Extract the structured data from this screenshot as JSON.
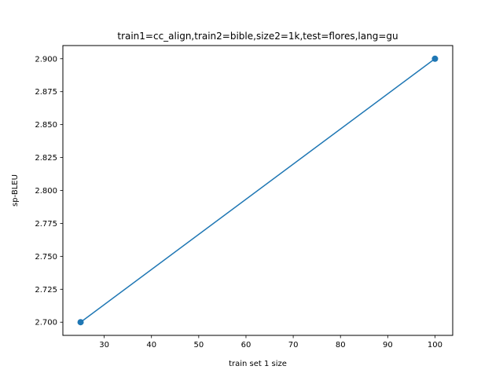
{
  "chart_data": {
    "type": "line",
    "title": "train1=cc_align,train2=bible,size2=1k,test=flores,lang=gu",
    "xlabel": "train set 1 size",
    "ylabel": "sp-BLEU",
    "x": [
      25,
      100
    ],
    "series": [
      {
        "values": [
          2.7,
          2.9
        ],
        "color": "#1f77b4",
        "marker": "circle"
      }
    ],
    "xlim": [
      21.25,
      103.75
    ],
    "ylim": [
      2.69,
      2.91
    ],
    "xticks": [
      30,
      40,
      50,
      60,
      70,
      80,
      90,
      100
    ],
    "xtick_labels": [
      "30",
      "40",
      "50",
      "60",
      "70",
      "80",
      "90",
      "100"
    ],
    "yticks": [
      2.7,
      2.725,
      2.75,
      2.775,
      2.8,
      2.825,
      2.85,
      2.875,
      2.9
    ],
    "ytick_labels": [
      "2.700",
      "2.725",
      "2.750",
      "2.775",
      "2.800",
      "2.825",
      "2.850",
      "2.875",
      "2.900"
    ],
    "grid": false,
    "legend": false
  }
}
